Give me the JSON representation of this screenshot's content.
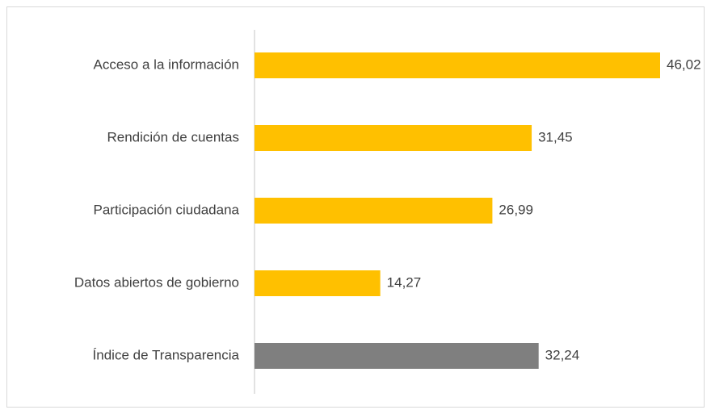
{
  "chart_data": {
    "type": "barh",
    "categories": [
      "Acceso a la información",
      "Rendición de cuentas",
      "Participación ciudadana",
      "Datos abiertos de gobierno",
      "Índice de Transparencia"
    ],
    "values": [
      46.02,
      31.45,
      26.99,
      14.27,
      32.24
    ],
    "value_labels": [
      "46,02",
      "31,45",
      "26,99",
      "14,27",
      "32,24"
    ],
    "colors": [
      "#ffc000",
      "#ffc000",
      "#ffc000",
      "#ffc000",
      "#7f7f7f"
    ]
  }
}
